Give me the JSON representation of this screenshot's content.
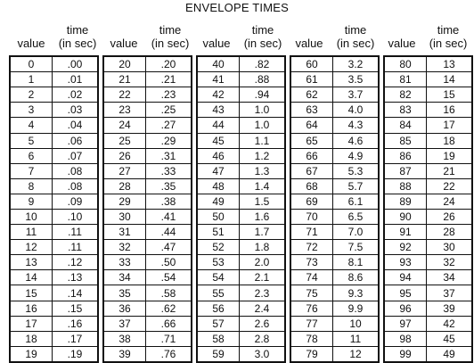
{
  "title": "ENVELOPE TIMES",
  "headers": {
    "value": "value",
    "time_line1": "time",
    "time_line2": "(in sec)"
  },
  "groups": [
    {
      "values": [
        "0",
        "1",
        "2",
        "3",
        "4",
        "5",
        "6",
        "7",
        "8",
        "9",
        "10",
        "11",
        "12",
        "13",
        "14",
        "15",
        "16",
        "17",
        "18",
        "19"
      ],
      "times": [
        ".00",
        ".01",
        ".02",
        ".03",
        ".04",
        ".06",
        ".07",
        ".08",
        ".08",
        ".09",
        ".10",
        ".11",
        ".11",
        ".12",
        ".13",
        ".14",
        ".15",
        ".16",
        ".17",
        ".19"
      ]
    },
    {
      "values": [
        "20",
        "21",
        "22",
        "23",
        "24",
        "25",
        "26",
        "27",
        "28",
        "29",
        "30",
        "31",
        "32",
        "33",
        "34",
        "35",
        "36",
        "37",
        "38",
        "39"
      ],
      "times": [
        ".20",
        ".21",
        ".23",
        ".25",
        ".27",
        ".29",
        ".31",
        ".33",
        ".35",
        ".38",
        ".41",
        ".44",
        ".47",
        ".50",
        ".54",
        ".58",
        ".62",
        ".66",
        ".71",
        ".76"
      ]
    },
    {
      "values": [
        "40",
        "41",
        "42",
        "43",
        "44",
        "45",
        "46",
        "47",
        "48",
        "49",
        "50",
        "51",
        "52",
        "53",
        "54",
        "55",
        "56",
        "57",
        "58",
        "59"
      ],
      "times": [
        ".82",
        ".88",
        ".94",
        "1.0",
        "1.0",
        "1.1",
        "1.2",
        "1.3",
        "1.4",
        "1.5",
        "1.6",
        "1.7",
        "1.8",
        "2.0",
        "2.1",
        "2.3",
        "2.4",
        "2.6",
        "2.8",
        "3.0"
      ]
    },
    {
      "values": [
        "60",
        "61",
        "62",
        "63",
        "64",
        "65",
        "66",
        "67",
        "68",
        "69",
        "70",
        "71",
        "72",
        "73",
        "74",
        "75",
        "76",
        "77",
        "78",
        "79"
      ],
      "times": [
        "3.2",
        "3.5",
        "3.7",
        "4.0",
        "4.3",
        "4.6",
        "4.9",
        "5.3",
        "5.7",
        "6.1",
        "6.5",
        "7.0",
        "7.5",
        "8.1",
        "8.6",
        "9.3",
        "9.9",
        "10",
        "11",
        "12"
      ]
    },
    {
      "values": [
        "80",
        "81",
        "82",
        "83",
        "84",
        "85",
        "86",
        "87",
        "88",
        "89",
        "90",
        "91",
        "92",
        "93",
        "94",
        "95",
        "96",
        "97",
        "98",
        "99"
      ],
      "times": [
        "13",
        "14",
        "15",
        "16",
        "17",
        "18",
        "19",
        "21",
        "22",
        "24",
        "26",
        "28",
        "30",
        "32",
        "34",
        "37",
        "39",
        "42",
        "45",
        "49"
      ]
    }
  ]
}
